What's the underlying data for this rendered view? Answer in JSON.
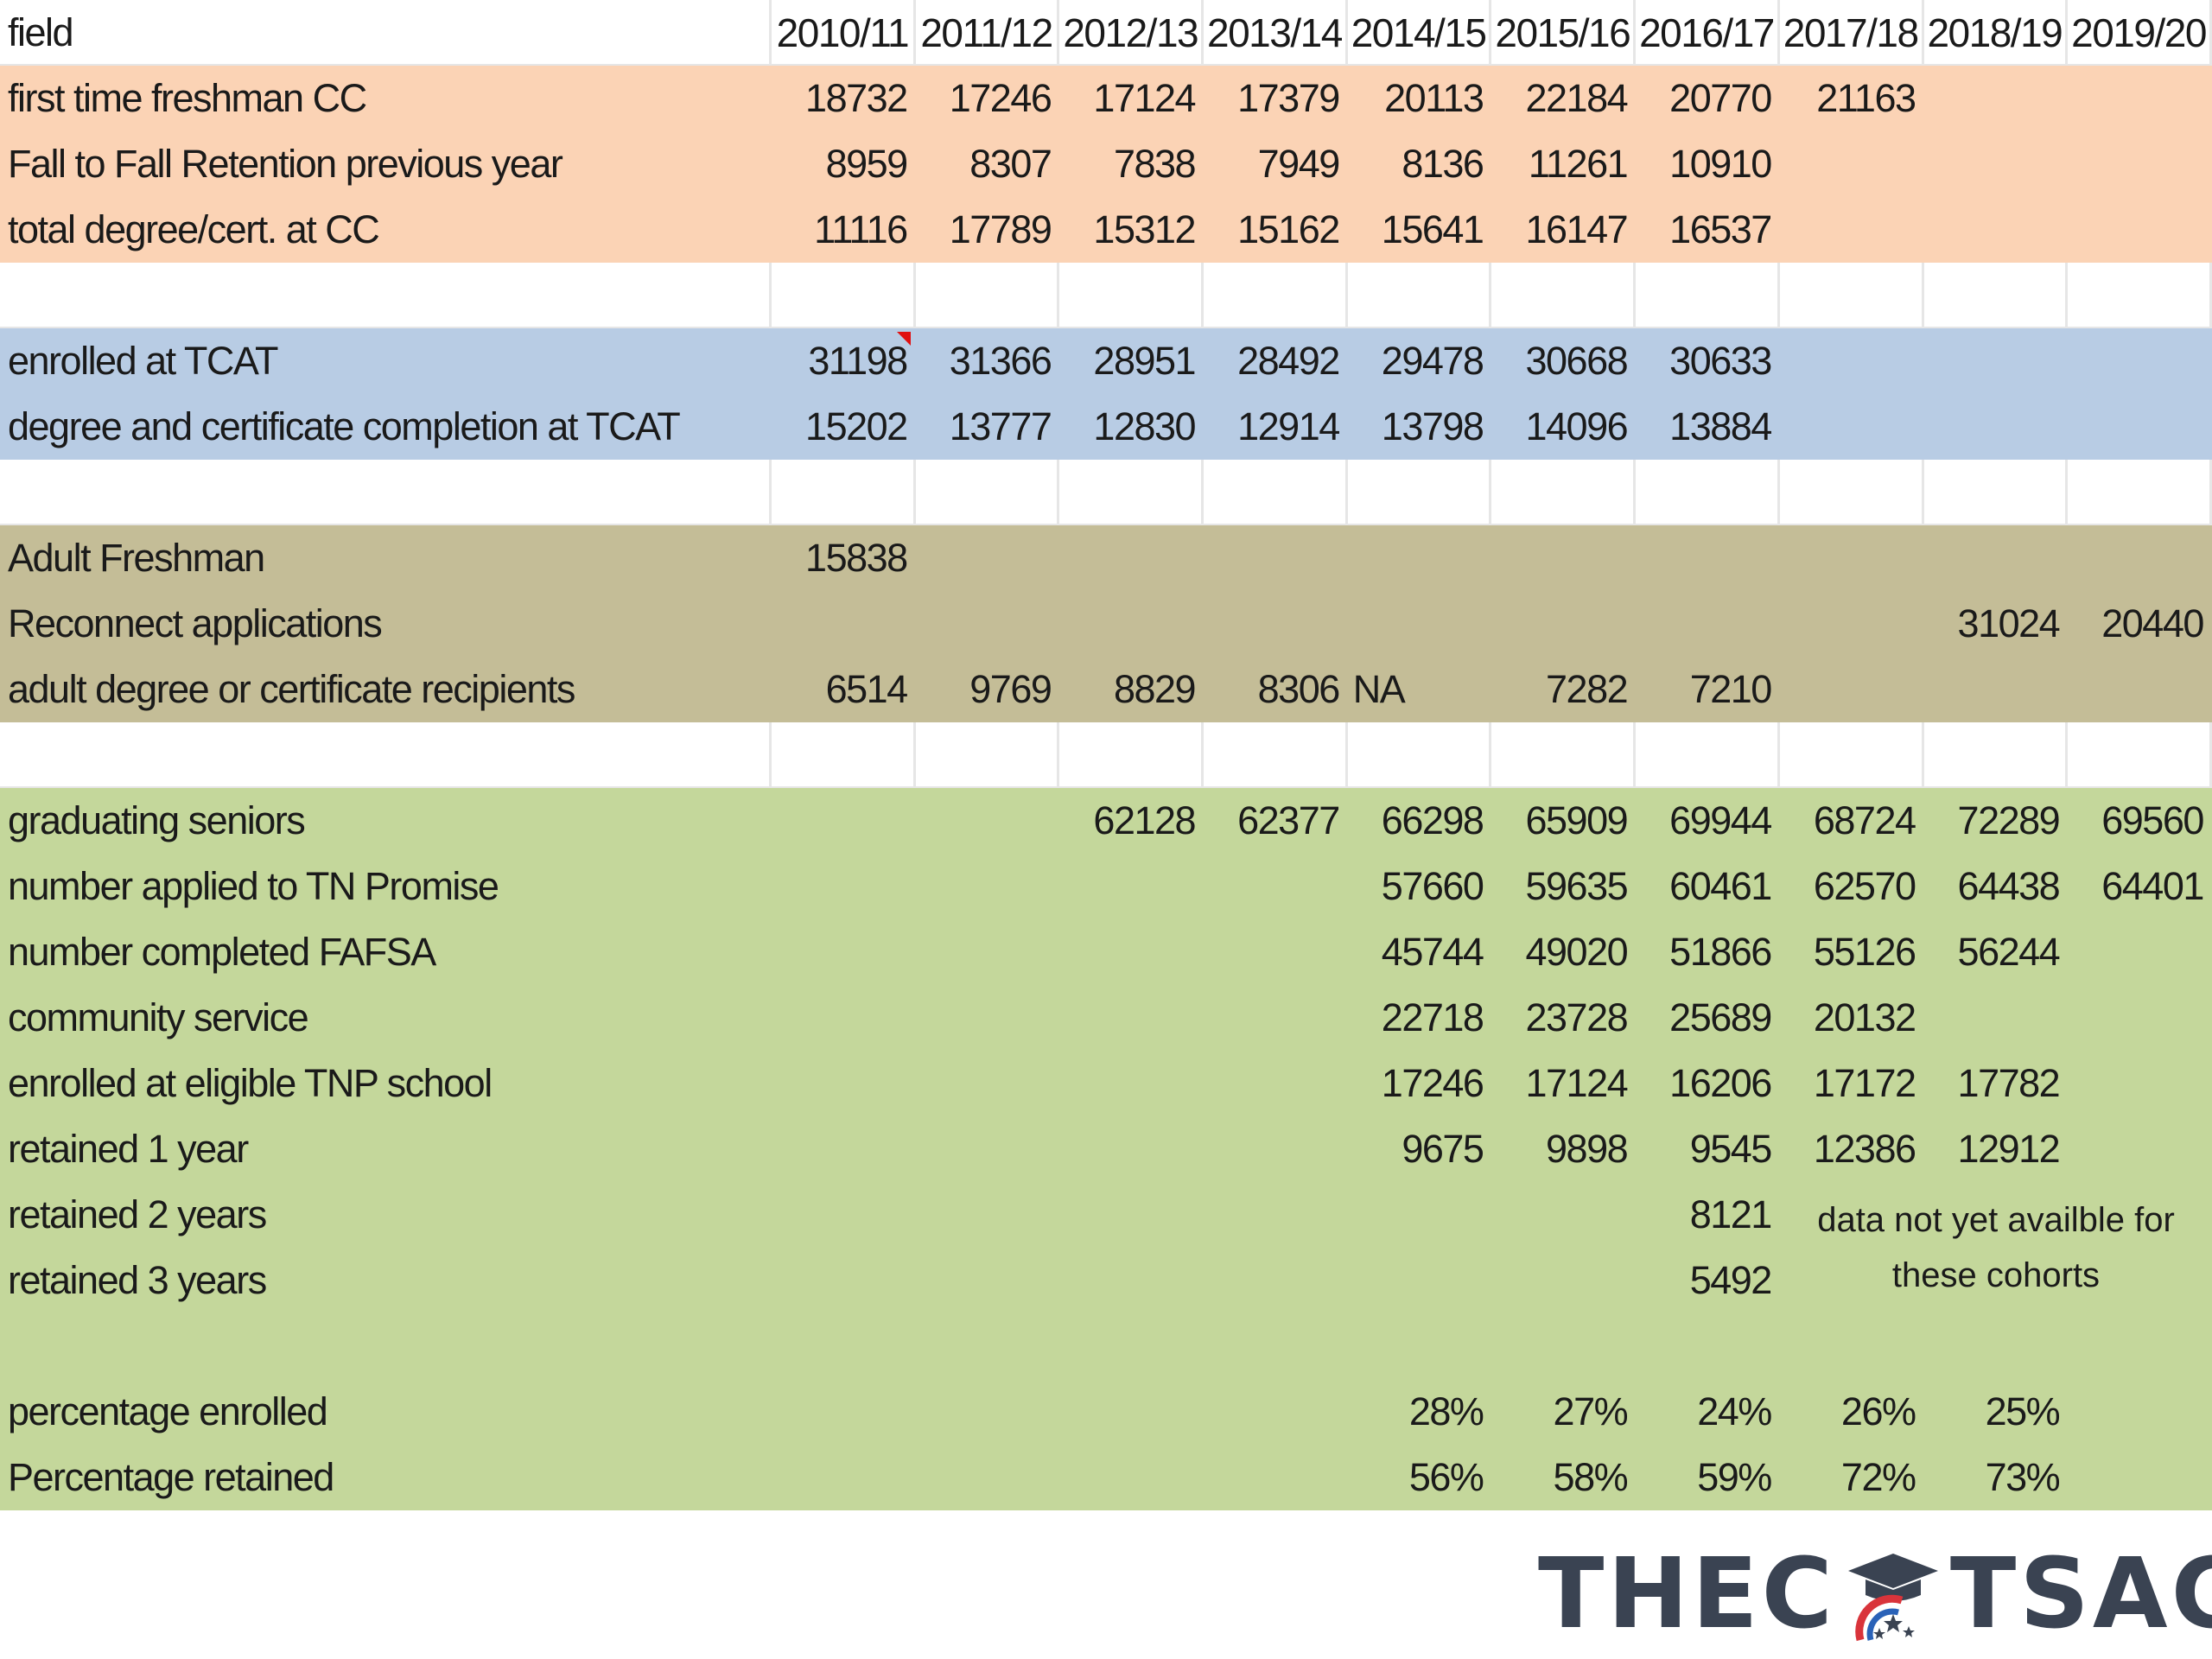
{
  "table": {
    "header": [
      "field",
      "2010/11",
      "2011/12",
      "2012/13",
      "2013/14",
      "2014/15",
      "2015/16",
      "2016/17",
      "2017/18",
      "2018/19",
      "2019/20"
    ],
    "rows": [
      {
        "band": "orange",
        "label": "first time freshman CC",
        "cells": [
          "18732",
          "17246",
          "17124",
          "17379",
          "20113",
          "22184",
          "20770",
          "21163",
          "",
          ""
        ]
      },
      {
        "band": "orange",
        "label": "Fall to Fall Retention previous year",
        "cells": [
          "8959",
          "8307",
          "7838",
          "7949",
          "8136",
          "11261",
          "10910",
          "",
          "",
          ""
        ]
      },
      {
        "band": "orange",
        "label": "total degree/cert. at CC",
        "cells": [
          "11116",
          "17789",
          "15312",
          "15162",
          "15641",
          "16147",
          "16537",
          "",
          "",
          ""
        ]
      },
      {
        "band": "blank",
        "label": "",
        "cells": [
          "",
          "",
          "",
          "",
          "",
          "",
          "",
          "",
          "",
          ""
        ]
      },
      {
        "band": "blue",
        "label": "enrolled at TCAT",
        "cells": [
          "31198",
          "31366",
          "28951",
          "28492",
          "29478",
          "30668",
          "30633",
          "",
          "",
          ""
        ]
      },
      {
        "band": "blue",
        "label": "degree and certificate completion at TCAT",
        "cells": [
          "15202",
          "13777",
          "12830",
          "12914",
          "13798",
          "14096",
          "13884",
          "",
          "",
          ""
        ]
      },
      {
        "band": "blank",
        "label": "",
        "cells": [
          "",
          "",
          "",
          "",
          "",
          "",
          "",
          "",
          "",
          ""
        ]
      },
      {
        "band": "tan",
        "label": "Adult Freshman",
        "cells": [
          "15838",
          "",
          "",
          "",
          "",
          "",
          "",
          "",
          "",
          ""
        ]
      },
      {
        "band": "tan",
        "label": "Reconnect applications",
        "cells": [
          "",
          "",
          "",
          "",
          "",
          "",
          "",
          "",
          "31024",
          "20440"
        ]
      },
      {
        "band": "tan",
        "label": "adult degree or certificate recipients",
        "cells": [
          "6514",
          "9769",
          "8829",
          "8306",
          "NA",
          "7282",
          "7210",
          "",
          "",
          ""
        ]
      },
      {
        "band": "blank",
        "label": "",
        "cells": [
          "",
          "",
          "",
          "",
          "",
          "",
          "",
          "",
          "",
          ""
        ]
      },
      {
        "band": "green",
        "label": "graduating seniors",
        "cells": [
          "",
          "",
          "62128",
          "62377",
          "66298",
          "65909",
          "69944",
          "68724",
          "72289",
          "69560"
        ]
      },
      {
        "band": "green",
        "label": "number applied to TN Promise",
        "cells": [
          "",
          "",
          "",
          "",
          "57660",
          "59635",
          "60461",
          "62570",
          "64438",
          "64401"
        ]
      },
      {
        "band": "green",
        "label": "number completed FAFSA",
        "cells": [
          "",
          "",
          "",
          "",
          "45744",
          "49020",
          "51866",
          "55126",
          "56244",
          ""
        ]
      },
      {
        "band": "green",
        "label": " community service",
        "cells": [
          "",
          "",
          "",
          "",
          "22718",
          "23728",
          "25689",
          "20132",
          "",
          ""
        ]
      },
      {
        "band": "green",
        "label": "enrolled at eligible TNP school",
        "cells": [
          "",
          "",
          "",
          "",
          "17246",
          "17124",
          "16206",
          "17172",
          "17782",
          ""
        ]
      },
      {
        "band": "green",
        "label": "retained 1 year",
        "cells": [
          "",
          "",
          "",
          "",
          "9675",
          "9898",
          "9545",
          "12386",
          "12912",
          ""
        ]
      },
      {
        "band": "green",
        "label": "retained 2 years",
        "cells": [
          "",
          "",
          "",
          "",
          "",
          "",
          "8121",
          "",
          "",
          ""
        ]
      },
      {
        "band": "green",
        "label": "retained 3 years",
        "cells": [
          "",
          "",
          "",
          "",
          "",
          "",
          "5492",
          "",
          "",
          ""
        ]
      },
      {
        "band": "green",
        "label": "",
        "cells": [
          "",
          "",
          "",
          "",
          "",
          "",
          "",
          "",
          "",
          ""
        ]
      },
      {
        "band": "green",
        "label": "percentage enrolled",
        "cells": [
          "",
          "",
          "",
          "",
          "28%",
          "27%",
          "24%",
          "26%",
          "25%",
          ""
        ]
      },
      {
        "band": "green",
        "label": "Percentage retained",
        "cells": [
          "",
          "",
          "",
          "",
          "56%",
          "58%",
          "59%",
          "72%",
          "73%",
          ""
        ]
      }
    ],
    "note": "data not yet availble for these cohorts"
  },
  "logo": {
    "left_text": "THEC",
    "right_text": "TSAC",
    "colors": {
      "text": "#3a4352",
      "red": "#d9343b",
      "blue": "#2a62b8"
    }
  },
  "colors": {
    "orange": "#fbd3b5",
    "blue": "#b8cce4",
    "tan": "#c4bd97",
    "green": "#c4d79b"
  }
}
